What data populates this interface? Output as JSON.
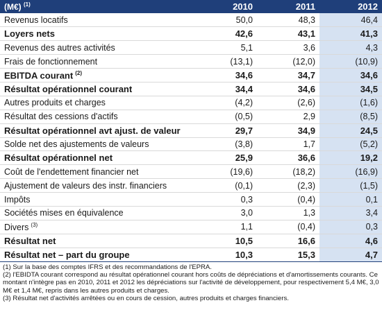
{
  "header": {
    "label": "(M€)",
    "label_note": "(1)",
    "years": [
      "2010",
      "2011",
      "2012"
    ]
  },
  "rows": [
    {
      "label": "Revenus locatifs",
      "note": "",
      "bold": false,
      "values": [
        "50,0",
        "48,3",
        "46,4"
      ]
    },
    {
      "label": "Loyers nets",
      "note": "",
      "bold": true,
      "values": [
        "42,6",
        "43,1",
        "41,3"
      ]
    },
    {
      "label": "Revenus des autres activités",
      "note": "",
      "bold": false,
      "values": [
        "5,1",
        "3,6",
        "4,3"
      ]
    },
    {
      "label": "Frais de fonctionnement",
      "note": "",
      "bold": false,
      "values": [
        "(13,1)",
        "(12,0)",
        "(10,9)"
      ]
    },
    {
      "label": "EBITDA courant",
      "note": "(2)",
      "bold": true,
      "values": [
        "34,6",
        "34,7",
        "34,6"
      ]
    },
    {
      "label": "Résultat opérationnel courant",
      "note": "",
      "bold": true,
      "values": [
        "34,4",
        "34,6",
        "34,5"
      ]
    },
    {
      "label": "Autres produits et charges",
      "note": "",
      "bold": false,
      "values": [
        "(4,2)",
        "(2,6)",
        "(1,6)"
      ]
    },
    {
      "label": "Résultat des cessions d'actifs",
      "note": "",
      "bold": false,
      "values": [
        "(0,5)",
        "2,9",
        "(8,5)"
      ]
    },
    {
      "label": "Résultat opérationnel avt ajust. de valeur",
      "note": "",
      "bold": true,
      "values": [
        "29,7",
        "34,9",
        "24,5"
      ]
    },
    {
      "label": "Solde net des ajustements de valeurs",
      "note": "",
      "bold": false,
      "values": [
        "(3,8)",
        "1,7",
        "(5,2)"
      ]
    },
    {
      "label": "Résultat opérationnel net",
      "note": "",
      "bold": true,
      "values": [
        "25,9",
        "36,6",
        "19,2"
      ]
    },
    {
      "label": "Coût de l'endettement financier net",
      "note": "",
      "bold": false,
      "values": [
        "(19,6)",
        "(18,2)",
        "(16,9)"
      ]
    },
    {
      "label": "Ajustement de valeurs des instr. financiers",
      "note": "",
      "bold": false,
      "values": [
        "(0,1)",
        "(2,3)",
        "(1,5)"
      ]
    },
    {
      "label": "Impôts",
      "note": "",
      "bold": false,
      "values": [
        "0,3",
        "(0,4)",
        "0,1"
      ]
    },
    {
      "label": "Sociétés mises en équivalence",
      "note": "",
      "bold": false,
      "values": [
        "3,0",
        "1,3",
        "3,4"
      ]
    },
    {
      "label": "Divers",
      "note": "(3)",
      "bold": false,
      "values": [
        "1,1",
        "(0,4)",
        "0,3"
      ]
    },
    {
      "label": "Résultat net",
      "note": "",
      "bold": true,
      "values": [
        "10,5",
        "16,6",
        "4,6"
      ]
    },
    {
      "label": "Résultat net – part du groupe",
      "note": "",
      "bold": true,
      "values": [
        "10,3",
        "15,3",
        "4,7"
      ]
    }
  ],
  "footnotes": [
    "(1) Sur la base des comptes IFRS et des recommandations de l'EPRA.",
    "(2) l'EBIDTA courant correspond au résultat opérationnel courant hors coûts de dépréciations et d'amortissements courants. Ce montant n'intègre pas en 2010, 2011 et 2012 les dépréciations sur l'activité de développement, pour respectivement 5,4 M€, 3,0 M€ et 1,4 M€, repris dans les autres produits et charges.",
    "(3) Résultat net d'activités arrêtées ou en cours de cession, autres produits et charges financiers."
  ],
  "colors": {
    "header_bg": "#1f3f7a",
    "highlight_col": "#d6e2f2"
  }
}
